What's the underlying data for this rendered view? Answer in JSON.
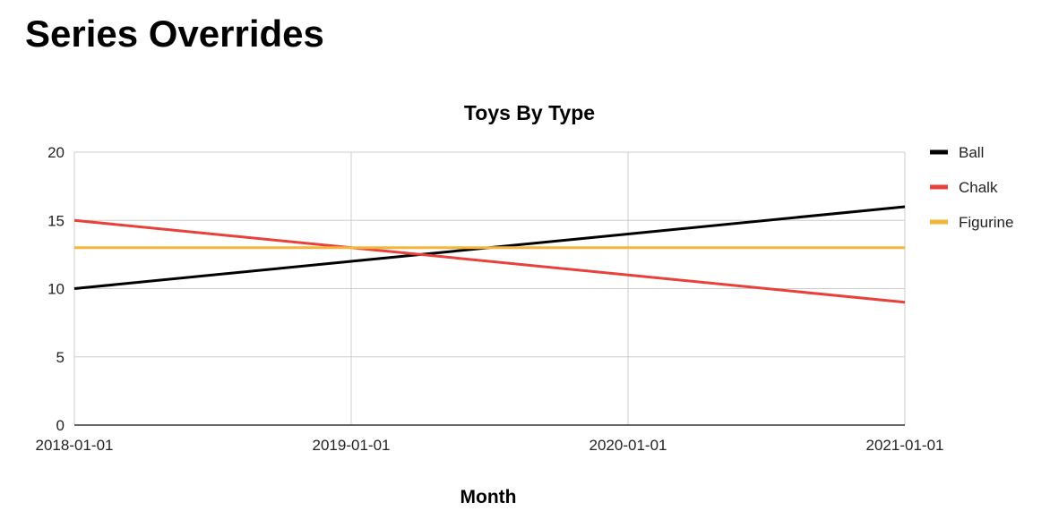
{
  "page": {
    "heading": "Series Overrides"
  },
  "chart_data": {
    "type": "line",
    "title": "Toys By Type",
    "xlabel": "Month",
    "ylabel": "",
    "x": [
      "2018-01-01",
      "2019-01-01",
      "2020-01-01",
      "2021-01-01"
    ],
    "ylim": [
      0,
      20
    ],
    "yticks": [
      0,
      5,
      10,
      15,
      20
    ],
    "grid": true,
    "legend": "right",
    "series": [
      {
        "name": "Ball",
        "color": "#000000",
        "values": [
          10,
          12,
          14,
          16
        ]
      },
      {
        "name": "Chalk",
        "color": "#e8403a",
        "values": [
          15,
          13,
          11,
          9
        ]
      },
      {
        "name": "Figurine",
        "color": "#f5b53a",
        "values": [
          13,
          13,
          13,
          13
        ]
      }
    ]
  }
}
